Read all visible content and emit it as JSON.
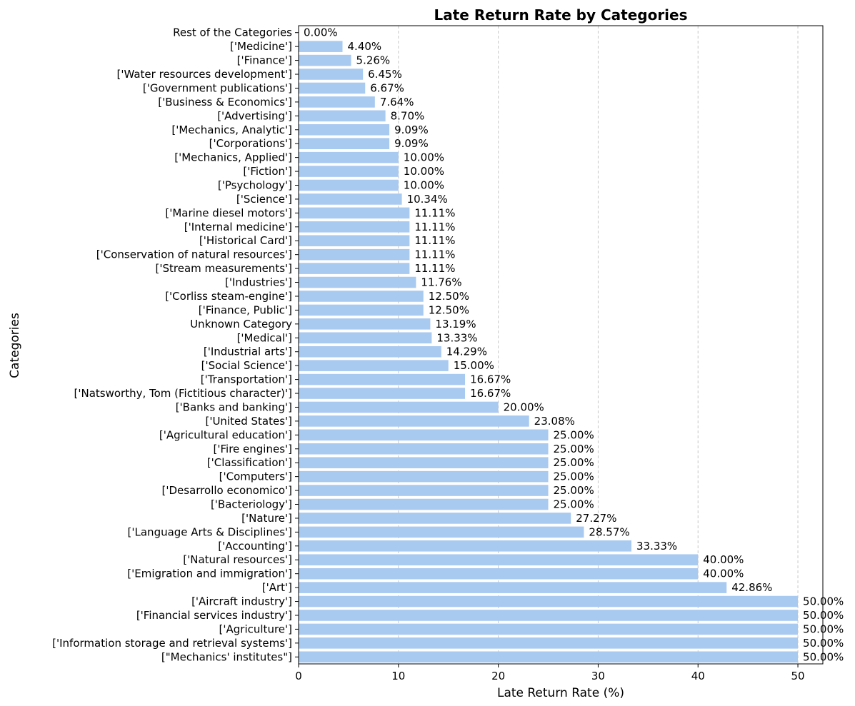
{
  "chart_data": {
    "type": "bar",
    "orientation": "horizontal",
    "title": "Late Return Rate by Categories",
    "xlabel": "Late Return Rate (%)",
    "ylabel": "Categories",
    "xlim": [
      0,
      52.5
    ],
    "xticks": [
      0,
      10,
      20,
      30,
      40,
      50
    ],
    "grid": "x-dashed",
    "bar_color": "#a8c9f0",
    "categories": [
      "Rest of the Categories",
      "['Medicine']",
      "['Finance']",
      "['Water resources development']",
      "['Government publications']",
      "['Business & Economics']",
      "['Advertising']",
      "['Mechanics, Analytic']",
      "['Corporations']",
      "['Mechanics, Applied']",
      "['Fiction']",
      "['Psychology']",
      "['Science']",
      "['Marine diesel motors']",
      "['Internal medicine']",
      "['Historical Card']",
      "['Conservation of natural resources']",
      "['Stream measurements']",
      "['Industries']",
      "['Corliss steam-engine']",
      "['Finance, Public']",
      "Unknown Category",
      "['Medical']",
      "['Industrial arts']",
      "['Social Science']",
      "['Transportation']",
      "['Natsworthy, Tom (Fictitious character)']",
      "['Banks and banking']",
      "['United States']",
      "['Agricultural education']",
      "['Fire engines']",
      "['Classification']",
      "['Computers']",
      "['Desarrollo economico']",
      "['Bacteriology']",
      "['Nature']",
      "['Language Arts & Disciplines']",
      "['Accounting']",
      "['Natural resources']",
      "['Emigration and immigration']",
      "['Art']",
      "['Aircraft industry']",
      "['Financial services industry']",
      "['Agriculture']",
      "['Information storage and retrieval systems']",
      "[\"Mechanics' institutes\"]"
    ],
    "values": [
      0.0,
      4.4,
      5.26,
      6.45,
      6.67,
      7.64,
      8.7,
      9.09,
      9.09,
      10.0,
      10.0,
      10.0,
      10.34,
      11.11,
      11.11,
      11.11,
      11.11,
      11.11,
      11.76,
      12.5,
      12.5,
      13.19,
      13.33,
      14.29,
      15.0,
      16.67,
      16.67,
      20.0,
      23.08,
      25.0,
      25.0,
      25.0,
      25.0,
      25.0,
      25.0,
      27.27,
      28.57,
      33.33,
      40.0,
      40.0,
      42.86,
      50.0,
      50.0,
      50.0,
      50.0,
      50.0
    ],
    "data_labels": [
      "0.00%",
      "4.40%",
      "5.26%",
      "6.45%",
      "6.67%",
      "7.64%",
      "8.70%",
      "9.09%",
      "9.09%",
      "10.00%",
      "10.00%",
      "10.00%",
      "10.34%",
      "11.11%",
      "11.11%",
      "11.11%",
      "11.11%",
      "11.11%",
      "11.76%",
      "12.50%",
      "12.50%",
      "13.19%",
      "13.33%",
      "14.29%",
      "15.00%",
      "16.67%",
      "16.67%",
      "20.00%",
      "23.08%",
      "25.00%",
      "25.00%",
      "25.00%",
      "25.00%",
      "25.00%",
      "25.00%",
      "27.27%",
      "28.57%",
      "33.33%",
      "40.00%",
      "40.00%",
      "42.86%",
      "50.00%",
      "50.00%",
      "50.00%",
      "50.00%",
      "50.00%"
    ]
  }
}
